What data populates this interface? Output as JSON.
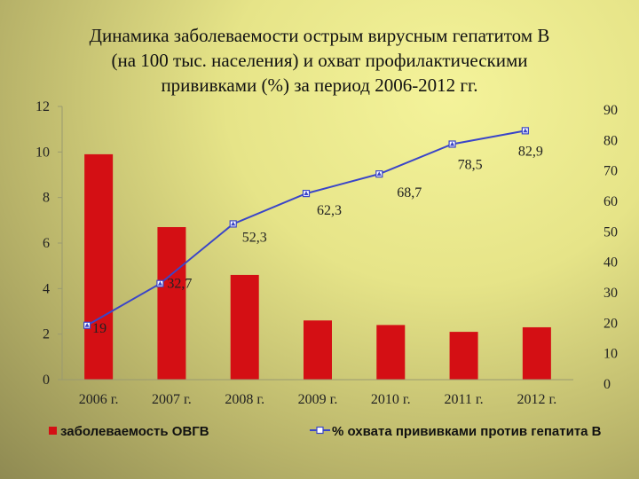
{
  "title_lines": [
    "Динамика заболеваемости острым вирусным гепатитом В",
    "(на 100 тыс. населения) и охват профилактическими",
    "прививками (%) за период 2006-2012 гг."
  ],
  "chart_data": {
    "type": "bar",
    "categories": [
      "2006 г.",
      "2007 г.",
      "2008 г.",
      "2009 г.",
      "2010 г.",
      "2011 г.",
      "2012 г."
    ],
    "series": [
      {
        "name": "заболеваемость ОВГВ",
        "type": "bar",
        "axis": "left",
        "color": "#d40f14",
        "values": [
          9.9,
          6.7,
          4.6,
          2.6,
          2.4,
          2.1,
          2.3
        ]
      },
      {
        "name": "% охвата прививками против гепатита В",
        "type": "line",
        "axis": "right",
        "color": "#3a45c8",
        "values": [
          19,
          32.7,
          52.3,
          62.3,
          68.7,
          78.5,
          82.9
        ],
        "data_labels": [
          "19",
          "32,7",
          "52,3",
          "62,3",
          "68,7",
          "78,5",
          "82,9"
        ]
      }
    ],
    "left_axis": {
      "ylim": [
        0,
        12
      ],
      "ticks": [
        0,
        2,
        4,
        6,
        8,
        10,
        12
      ],
      "tick_labels": [
        "0",
        "2",
        "4",
        "6",
        "8",
        "10",
        "12"
      ]
    },
    "right_axis": {
      "ylim": [
        0,
        90
      ],
      "ticks": [
        0,
        10,
        20,
        30,
        40,
        50,
        60,
        70,
        80,
        90
      ],
      "tick_labels": [
        "0",
        "10",
        "20",
        "30",
        "40",
        "50",
        "60",
        "70",
        "80",
        "90"
      ]
    },
    "grid": false,
    "legend_position": "bottom"
  }
}
